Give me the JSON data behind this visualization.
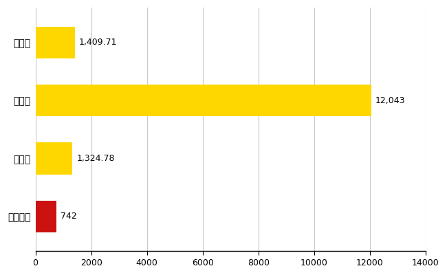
{
  "categories": [
    "北本市",
    "県平均",
    "県最大",
    "全国平均"
  ],
  "values": [
    742,
    1324.78,
    12043,
    1409.71
  ],
  "bar_colors": [
    "#CC1111",
    "#FFD700",
    "#FFD700",
    "#FFD700"
  ],
  "value_labels": [
    "742",
    "1,324.78",
    "12,043",
    "1,409.71"
  ],
  "xlim": [
    0,
    14000
  ],
  "xticks": [
    0,
    2000,
    4000,
    6000,
    8000,
    10000,
    12000,
    14000
  ],
  "grid_color": "#C8C8C8",
  "background_color": "#FFFFFF",
  "bar_height": 0.55,
  "label_fontsize": 10,
  "tick_fontsize": 9,
  "value_fontsize": 9
}
